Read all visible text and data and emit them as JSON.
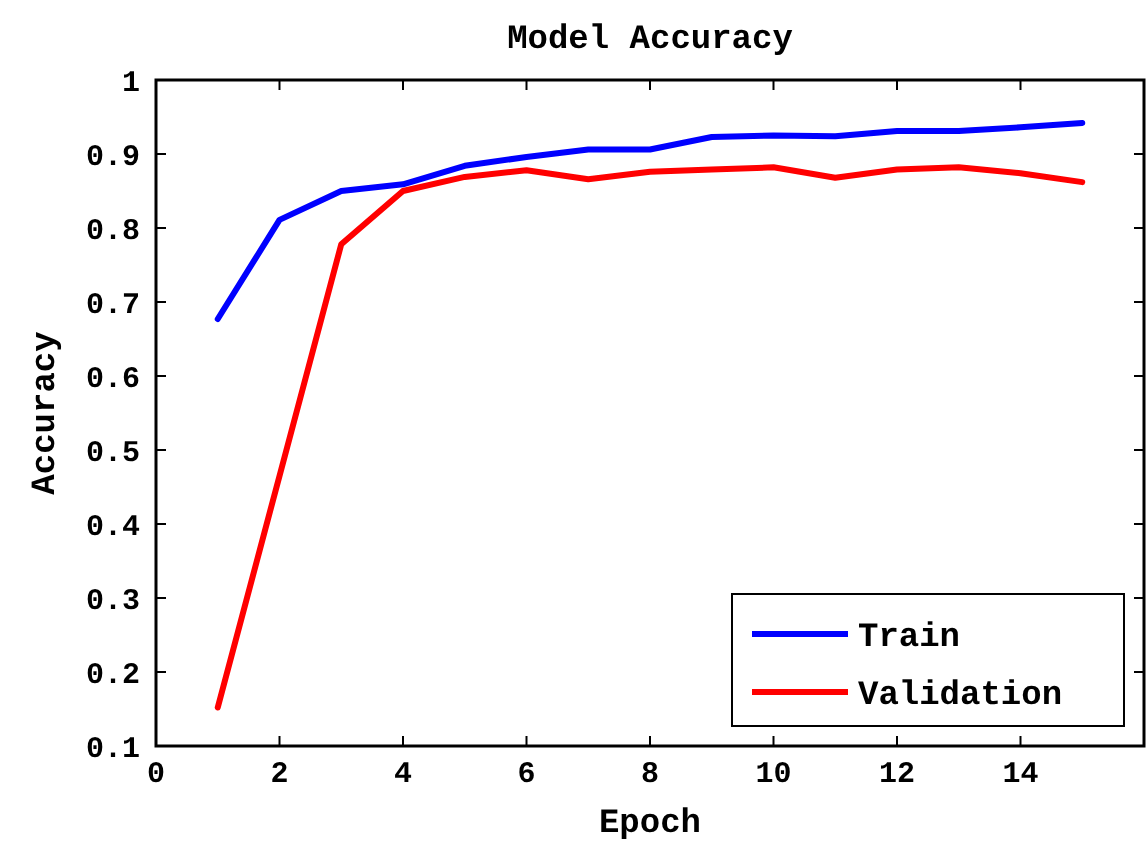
{
  "chart_data": {
    "type": "line",
    "title": "Model Accuracy",
    "xlabel": "Epoch",
    "ylabel": "Accuracy",
    "x": [
      1,
      2,
      3,
      4,
      5,
      6,
      7,
      8,
      9,
      10,
      11,
      12,
      13,
      14,
      15
    ],
    "series": [
      {
        "name": "Train",
        "color": "#0000ff",
        "values": [
          0.677,
          0.811,
          0.85,
          0.859,
          0.884,
          0.896,
          0.906,
          0.906,
          0.923,
          0.925,
          0.924,
          0.931,
          0.931,
          0.936,
          0.942
        ]
      },
      {
        "name": "Validation",
        "color": "#ff0000",
        "values": [
          0.152,
          0.465,
          0.778,
          0.85,
          0.869,
          0.878,
          0.866,
          0.876,
          0.879,
          0.882,
          0.868,
          0.879,
          0.882,
          0.874,
          0.862
        ]
      }
    ],
    "xlim": [
      0,
      16
    ],
    "xticks": [
      0,
      2,
      4,
      6,
      8,
      10,
      12,
      14,
      {
        "value": 16,
        "label": null
      }
    ],
    "ylim": [
      0.1,
      1
    ],
    "yticks": [
      0.1,
      0.2,
      0.3,
      0.4,
      0.5,
      0.6,
      0.7,
      0.8,
      0.9,
      1
    ],
    "legend": "bottom right",
    "grid": false,
    "marker": "none",
    "line_style": "solid"
  }
}
